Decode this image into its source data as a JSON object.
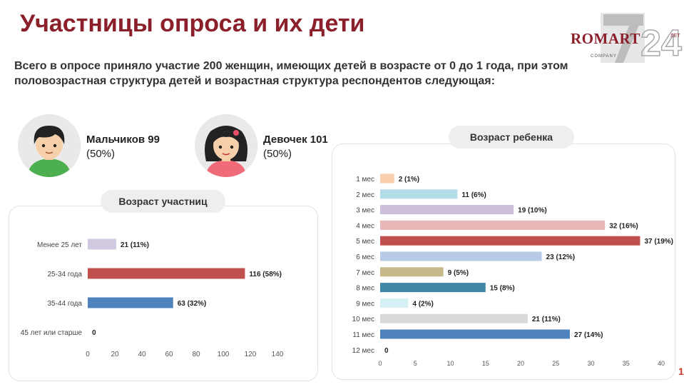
{
  "title": "Участницы опроса и их дети",
  "logo": {
    "name": "ROMART",
    "sub": "COMPANY",
    "years": "24",
    "years_word": "ЛЕТ"
  },
  "intro": "Всего в опросе приняло участие 200 женщин, имеющих детей в возрасте от 0 до 1 года, при этом половозрастная структура детей и возрастная структура респондентов следующая:",
  "boys": {
    "label": "Мальчиков 99",
    "pct": "(50%)"
  },
  "girls": {
    "label": "Девочек 101",
    "pct": "(50%)"
  },
  "page_mark": "1",
  "colors": {
    "accent": "#8b1f2a"
  },
  "chart_data": [
    {
      "type": "bar",
      "orientation": "horizontal",
      "title": "Возраст участниц",
      "categories": [
        "Менее 25 лет",
        "25-34 года",
        "35-44 года",
        "45 лет или старше"
      ],
      "values": [
        21,
        116,
        63,
        0
      ],
      "labels": [
        "21 (11%)",
        "116 (58%)",
        "63 (32%)",
        "0"
      ],
      "colors": [
        "#d0c9df",
        "#c0504d",
        "#4f81bd",
        "#9e9e9e"
      ],
      "xlim": [
        0,
        140
      ],
      "xticks": [
        0,
        20,
        40,
        60,
        80,
        100,
        120,
        140
      ],
      "grid": false
    },
    {
      "type": "bar",
      "orientation": "horizontal",
      "title": "Возраст ребенка",
      "categories": [
        "1 мес",
        "2 мес",
        "3 мес",
        "4 мес",
        "5 мес",
        "6 мес",
        "7 мес",
        "8 мес",
        "9 мес",
        "10 мес",
        "11 мес",
        "12 мес"
      ],
      "values": [
        2,
        11,
        19,
        32,
        37,
        23,
        9,
        15,
        4,
        21,
        27,
        0
      ],
      "labels": [
        "2 (1%)",
        "11 (6%)",
        "19 (10%)",
        "32 (16%)",
        "37 (19%)",
        "23 (12%)",
        "9 (5%)",
        "15 (8%)",
        "4 (2%)",
        "21 (11%)",
        "27 (14%)",
        "0"
      ],
      "colors": [
        "#f9cfae",
        "#b2dde6",
        "#cbbfdc",
        "#e8b8b8",
        "#c0504d",
        "#b7cbe6",
        "#c7b98c",
        "#3f87a6",
        "#d6f1f5",
        "#d9d9d9",
        "#4f81bd",
        "#9e9e9e"
      ],
      "xlim": [
        0,
        40
      ],
      "xticks": [
        0,
        5,
        10,
        15,
        20,
        25,
        30,
        35,
        40
      ],
      "grid": false
    }
  ]
}
